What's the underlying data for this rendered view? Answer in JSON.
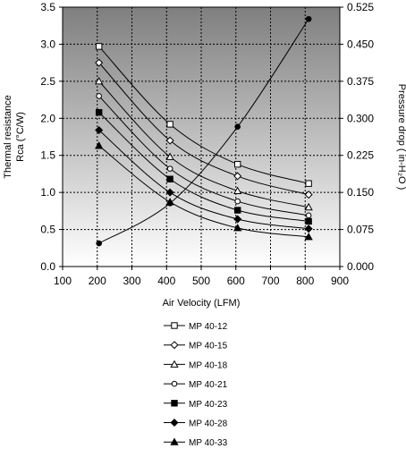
{
  "chart_data": {
    "type": "line",
    "xlabel": "Air Velocity (LFM)",
    "ylabel_left": [
      "Thermal resistance",
      "Rca (°C/W)"
    ],
    "ylabel_right": "Pressure drop ( in-H₂O )",
    "xlim": [
      100,
      900
    ],
    "x_ticks": [
      100,
      200,
      300,
      400,
      500,
      600,
      700,
      800,
      900
    ],
    "ylim_left": [
      0,
      3.5
    ],
    "y_ticks_left": [
      "0.0",
      "0.5",
      "1.0",
      "1.5",
      "2.0",
      "2.5",
      "3.0",
      "3.5"
    ],
    "ylim_right": [
      0,
      0.525
    ],
    "y_ticks_right": [
      "0.000",
      "0.075",
      "0.150",
      "0.225",
      "0.300",
      "0.375",
      "0.450",
      "0.525"
    ],
    "grid": true,
    "legend_position": "bottom",
    "series": [
      {
        "name": "MP 40-12",
        "marker": "square-open",
        "x": [
          205,
          410,
          605,
          810
        ],
        "y": [
          2.97,
          1.92,
          1.38,
          1.12
        ]
      },
      {
        "name": "MP 40-15",
        "marker": "diamond-open",
        "x": [
          205,
          410,
          605,
          810
        ],
        "y": [
          2.75,
          1.7,
          1.22,
          0.97
        ]
      },
      {
        "name": "MP 40-18",
        "marker": "triangle-open",
        "x": [
          205,
          410,
          605,
          810
        ],
        "y": [
          2.5,
          1.48,
          1.02,
          0.8
        ]
      },
      {
        "name": "MP 40-21",
        "marker": "circle-open",
        "x": [
          205,
          410,
          605,
          810
        ],
        "y": [
          2.3,
          1.32,
          0.88,
          0.69
        ]
      },
      {
        "name": "MP 40-23",
        "marker": "square-filled",
        "x": [
          205,
          410,
          605,
          810
        ],
        "y": [
          2.08,
          1.18,
          0.76,
          0.61
        ]
      },
      {
        "name": "MP 40-28",
        "marker": "diamond-filled",
        "x": [
          205,
          410,
          605,
          810
        ],
        "y": [
          1.84,
          1.0,
          0.64,
          0.51
        ]
      },
      {
        "name": "MP 40-33",
        "marker": "triangle-filled",
        "x": [
          205,
          410,
          605,
          810
        ],
        "y": [
          1.63,
          0.87,
          0.52,
          0.4
        ]
      }
    ],
    "pressure_drop": {
      "axis": "right",
      "marker": "circle-filled",
      "x": [
        205,
        410,
        605,
        810
      ],
      "y": [
        0.047,
        0.128,
        0.283,
        0.501
      ]
    },
    "colors": {
      "plot_bg_top": "#7f7f7f",
      "plot_bg_bottom": "#ffffff",
      "line": "#000000",
      "grid": "#000000"
    }
  }
}
